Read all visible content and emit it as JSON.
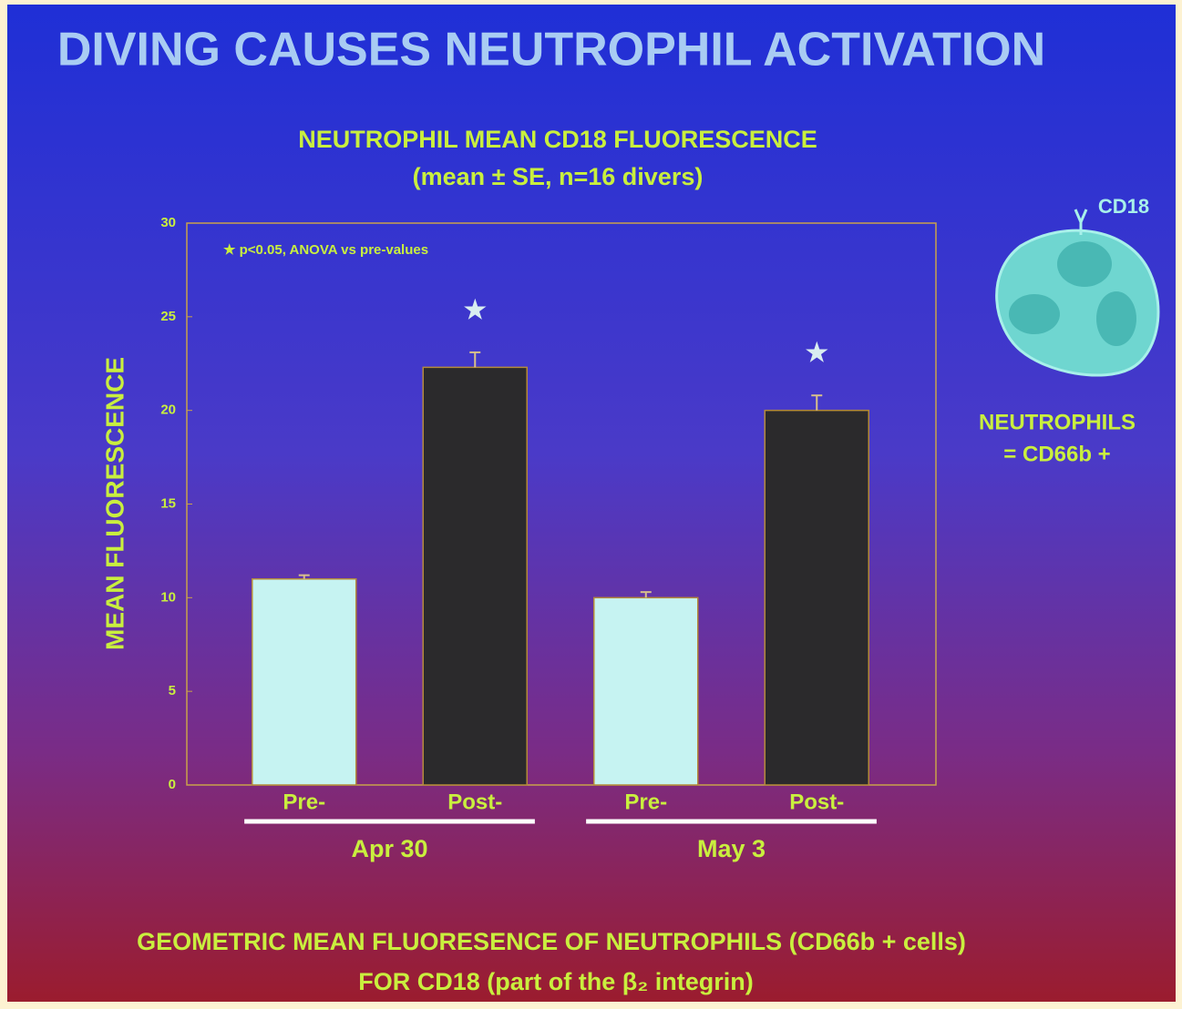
{
  "slide": {
    "heading": "DIVING CAUSES NEUTROPHIL ACTIVATION",
    "cell_marker": "CD18",
    "side_note": [
      "NEUTROPHILS",
      "= CD66b +"
    ],
    "footer": [
      "GEOMETRIC MEAN FLUORESENCE OF NEUTROPHILS (CD66b + cells)",
      "FOR CD18 (part of the β₂ integrin)"
    ]
  },
  "chart_data": {
    "type": "bar",
    "title": "NEUTROPHIL MEAN CD18 FLUORESCENCE",
    "subtitle": "(mean ± SE, n=16 divers)",
    "y_label": "MEAN FLUORESCENCE",
    "annotation": "★ p<0.05, ANOVA vs pre-values",
    "categories": [
      "Pre-",
      "Post-",
      "Pre-",
      "Post-"
    ],
    "groups": [
      "Apr 30",
      "May 3"
    ],
    "values": [
      11.0,
      22.3,
      10.0,
      20.0
    ],
    "errors": [
      0.2,
      0.8,
      0.3,
      0.8
    ],
    "colors": [
      "#c6f3f2",
      "#2b2a2c",
      "#c6f3f2",
      "#2b2a2c"
    ],
    "significance_markers": [
      null,
      "★",
      null,
      "★"
    ],
    "ylim": [
      0,
      30
    ],
    "yticks": [
      0,
      5,
      10,
      15,
      20,
      25,
      30
    ]
  }
}
